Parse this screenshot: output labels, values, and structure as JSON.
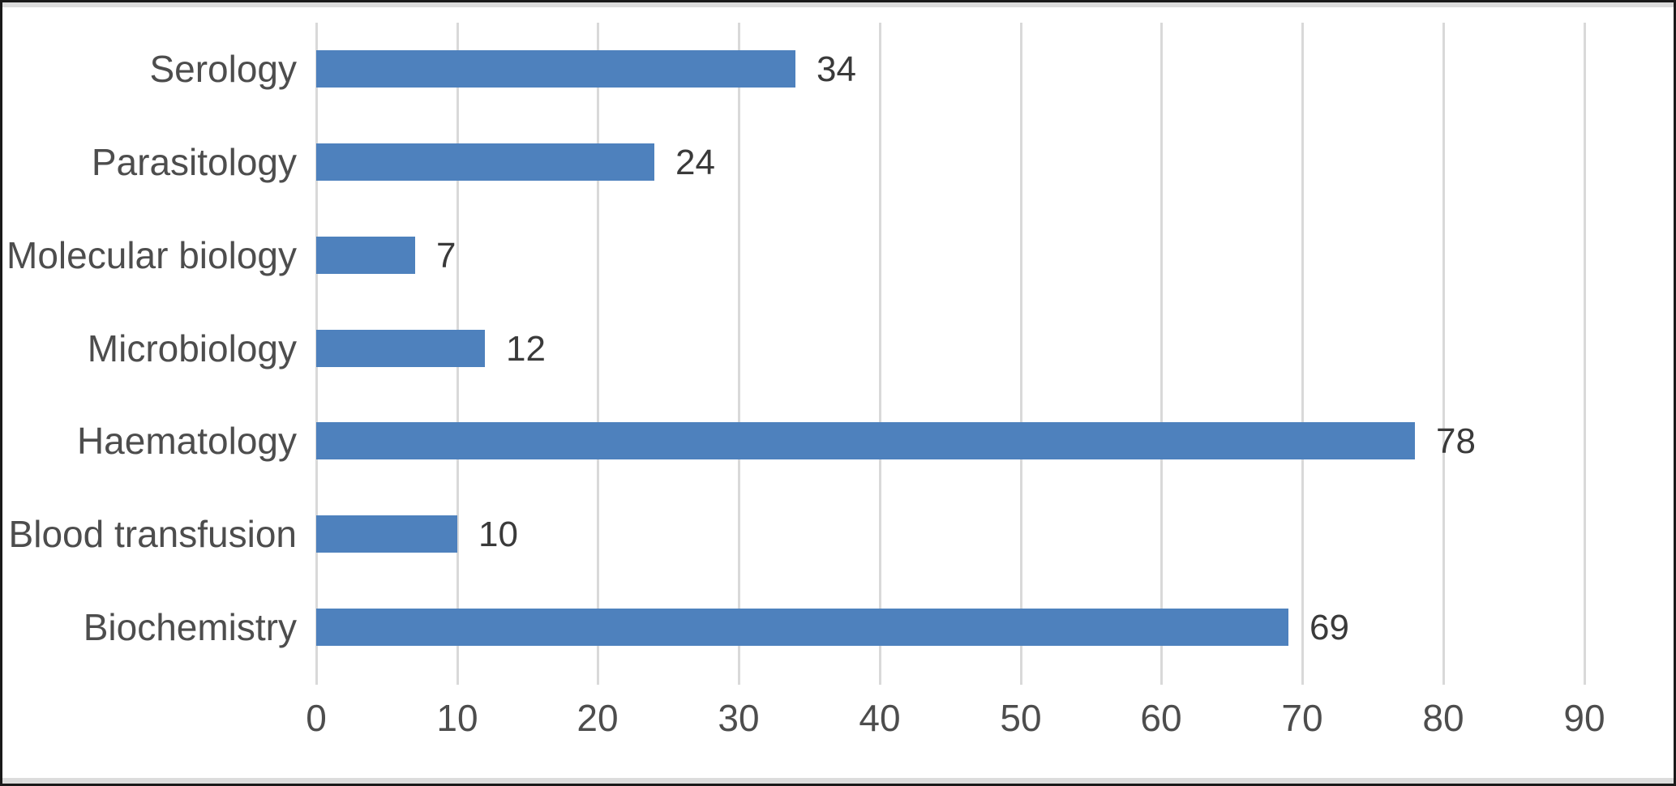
{
  "window": {
    "background": "#ffffff",
    "frame_border_color": "#1a1a1a",
    "edge_strip_color": "#dcdcdc"
  },
  "chart_data": {
    "type": "bar",
    "orientation": "horizontal",
    "title": "",
    "xlabel": "",
    "ylabel": "",
    "categories": [
      "Serology",
      "Parasitology",
      "Molecular biology",
      "Microbiology",
      "Haematology",
      "Blood transfusion",
      "Biochemistry"
    ],
    "values": [
      34,
      24,
      7,
      12,
      78,
      10,
      69
    ],
    "data_labels": [
      "34",
      "24",
      "7",
      "12",
      "78",
      "10",
      "69"
    ],
    "x_ticks": [
      0,
      10,
      20,
      30,
      40,
      50,
      60,
      70,
      80,
      90
    ],
    "xlim": [
      0,
      94
    ],
    "grid": true,
    "legend": false,
    "bar_color": "#4e81bd",
    "gridline_color": "#d9d9d9",
    "axis_text_color": "#4d4d4d",
    "value_text_color": "#3a3a3a"
  }
}
